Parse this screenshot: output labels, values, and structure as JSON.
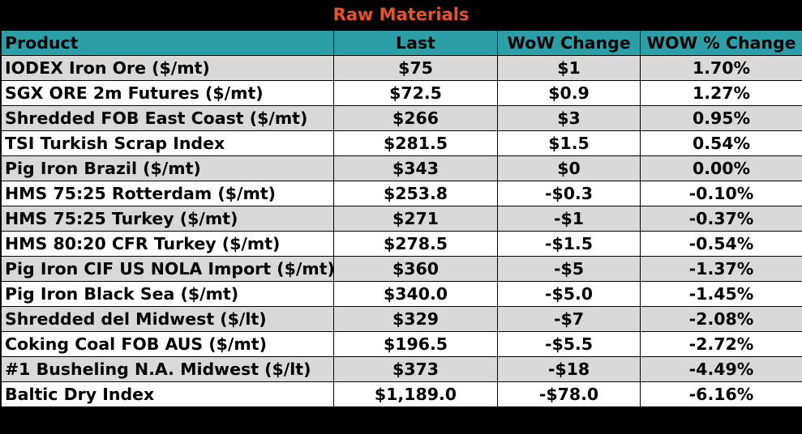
{
  "title": "Raw Materials",
  "colors": {
    "title_text": "#e8532a",
    "header_bg": "#2b9ea8",
    "band_grey": "#d9d9d9",
    "band_white": "#ffffff",
    "border": "#000000"
  },
  "columns": [
    "Product",
    "Last",
    "WoW Change",
    "WOW % Change"
  ],
  "rows": [
    {
      "product": "IODEX  Iron Ore ($/mt)",
      "last": "$75",
      "wow_change": "$1",
      "wow_pct": "1.70%"
    },
    {
      "product": "SGX ORE 2m Futures ($/mt)",
      "last": "$72.5",
      "wow_change": "$0.9",
      "wow_pct": "1.27%"
    },
    {
      "product": "Shredded FOB East Coast ($/mt)",
      "last": "$266",
      "wow_change": "$3",
      "wow_pct": "0.95%"
    },
    {
      "product": "TSI Turkish Scrap Index",
      "last": "$281.5",
      "wow_change": "$1.5",
      "wow_pct": "0.54%"
    },
    {
      "product": "Pig Iron Brazil ($/mt)",
      "last": "$343",
      "wow_change": "$0",
      "wow_pct": "0.00%"
    },
    {
      "product": "HMS 75:25 Rotterdam ($/mt)",
      "last": "$253.8",
      "wow_change": "-$0.3",
      "wow_pct": "-0.10%"
    },
    {
      "product": "HMS 75:25 Turkey ($/mt)",
      "last": "$271",
      "wow_change": "-$1",
      "wow_pct": "-0.37%"
    },
    {
      "product": "HMS 80:20 CFR Turkey ($/mt)",
      "last": "$278.5",
      "wow_change": "-$1.5",
      "wow_pct": "-0.54%"
    },
    {
      "product": "Pig Iron CIF US NOLA Import ($/mt)",
      "last": "$360",
      "wow_change": "-$5",
      "wow_pct": "-1.37%"
    },
    {
      "product": "Pig Iron Black Sea ($/mt)",
      "last": "$340.0",
      "wow_change": "-$5.0",
      "wow_pct": "-1.45%"
    },
    {
      "product": "Shredded del  Midwest ($/lt)",
      "last": "$329",
      "wow_change": "-$7",
      "wow_pct": "-2.08%"
    },
    {
      "product": "Coking Coal FOB AUS ($/mt)",
      "last": "$196.5",
      "wow_change": "-$5.5",
      "wow_pct": "-2.72%"
    },
    {
      "product": "#1 Busheling N.A. Midwest ($/lt)",
      "last": "$373",
      "wow_change": "-$18",
      "wow_pct": "-4.49%"
    },
    {
      "product": "Baltic Dry Index",
      "last": "$1,189.0",
      "wow_change": "-$78.0",
      "wow_pct": "-6.16%"
    }
  ]
}
